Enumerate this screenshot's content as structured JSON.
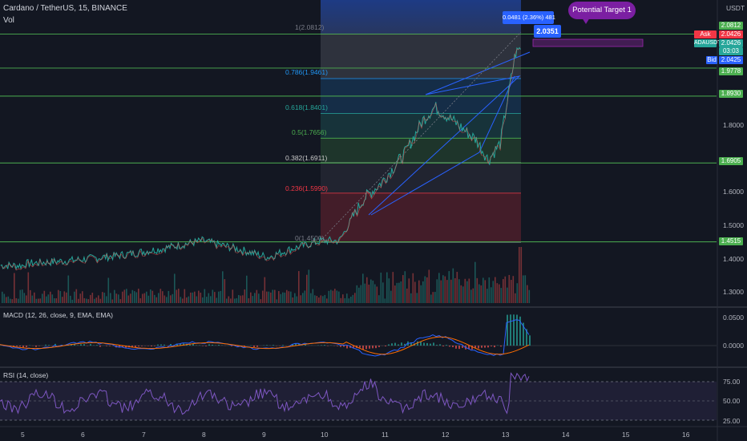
{
  "header": {
    "title": "Cardano / TetherUS, 15, BINANCE",
    "vol_label": "Vol",
    "currency": "USDT"
  },
  "price_axis": {
    "ticks": [
      "1.9000",
      "1.8000",
      "1.7000",
      "1.6000",
      "1.5000",
      "1.4000",
      "1.3000"
    ],
    "badges": [
      {
        "text": "2.0812",
        "color": "#4caf50"
      },
      {
        "text": "Ask",
        "color": "#f23645"
      },
      {
        "text": "2.0426",
        "color": "#f23645"
      },
      {
        "text": "ADAUSDT",
        "color": "#26a69a"
      },
      {
        "text": "2.0426",
        "color": "#26a69a"
      },
      {
        "text": "03:03",
        "color": "#26a69a"
      },
      {
        "text": "Bid",
        "color": "#2962ff"
      },
      {
        "text": "2.0425",
        "color": "#2962ff"
      },
      {
        "text": "1.9778",
        "color": "#4caf50"
      },
      {
        "text": "1.8930",
        "color": "#4caf50"
      },
      {
        "text": "1.6905",
        "color": "#4caf50"
      },
      {
        "text": "1.4515",
        "color": "#4caf50"
      }
    ]
  },
  "x_axis": {
    "labels": [
      "5",
      "6",
      "7",
      "8",
      "9",
      "10",
      "11",
      "12",
      "13",
      "14",
      "15",
      "16"
    ]
  },
  "fibonacci": {
    "levels": [
      {
        "label": "1(2.0812)",
        "color": "#787b86"
      },
      {
        "label": "0.786(1.9461)",
        "color": "#2196f3"
      },
      {
        "label": "0.618(1.8401)",
        "color": "#26a69a"
      },
      {
        "label": "0.5(1.7656)",
        "color": "#4caf50"
      },
      {
        "label": "0.382(1.6911)",
        "color": "#c8c8c8"
      },
      {
        "label": "0.236(1.5990)",
        "color": "#f23645"
      },
      {
        "label": "0(1.4500)",
        "color": "#787b86"
      }
    ]
  },
  "annotations": {
    "target": "Potential Target 1",
    "measure": "0.0481 (2.36%) 481",
    "price_tag": "2.0351"
  },
  "macd": {
    "title": "MACD (12, 26, close, 9, EMA, EMA)",
    "ticks": [
      "0.0500",
      "0.0000"
    ]
  },
  "rsi": {
    "title": "RSI (14, close)",
    "ticks": [
      "75.00",
      "50.00",
      "25.00"
    ]
  },
  "chart_data": {
    "type": "line",
    "title": "Cardano / TetherUS, 15, BINANCE",
    "x": [
      "5",
      "6",
      "7",
      "8",
      "9",
      "10",
      "11",
      "12",
      "13"
    ],
    "series": [
      {
        "name": "ADAUSDT",
        "values": [
          1.385,
          1.4,
          1.425,
          1.45,
          1.415,
          1.455,
          1.63,
          1.87,
          2.043
        ]
      }
    ],
    "ylim": [
      1.25,
      2.1
    ],
    "horizontal_levels": [
      2.0812,
      1.9778,
      1.893,
      1.6905,
      1.4515
    ],
    "last_price": 2.0426,
    "macd_range": [
      -0.02,
      0.06
    ],
    "rsi_levels": [
      75,
      50,
      25
    ]
  }
}
